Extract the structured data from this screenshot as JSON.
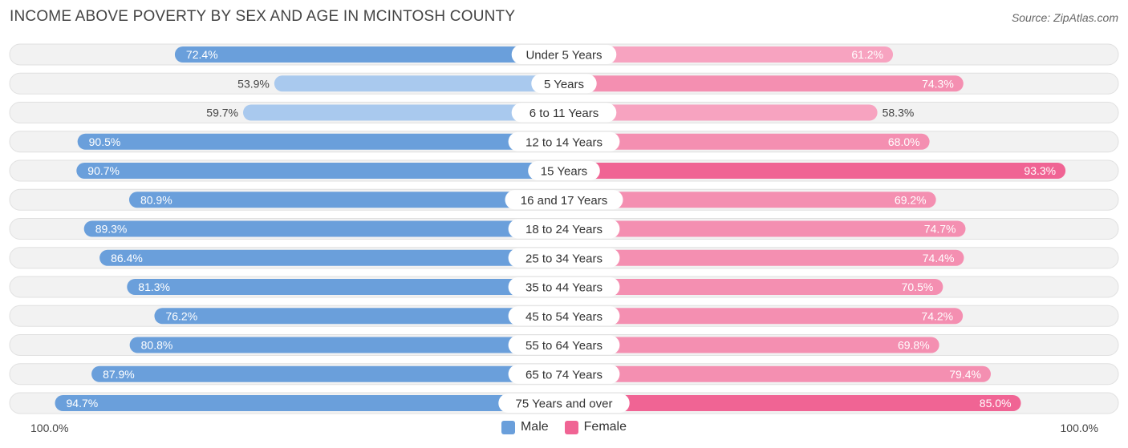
{
  "title": "INCOME ABOVE POVERTY BY SEX AND AGE IN MCINTOSH COUNTY",
  "source": "Source: ZipAtlas.com",
  "axis": {
    "left": "100.0%",
    "right": "100.0%"
  },
  "legend": [
    {
      "name": "Male",
      "color": "#6a9fdb"
    },
    {
      "name": "Female",
      "color": "#f06494"
    }
  ],
  "chart_data": {
    "type": "bar",
    "orientation": "horizontal-diverging",
    "title": "INCOME ABOVE POVERTY BY SEX AND AGE IN MCINTOSH COUNTY",
    "categories": [
      "Under 5 Years",
      "5 Years",
      "6 to 11 Years",
      "12 to 14 Years",
      "15 Years",
      "16 and 17 Years",
      "18 to 24 Years",
      "25 to 34 Years",
      "35 to 44 Years",
      "45 to 54 Years",
      "55 to 64 Years",
      "65 to 74 Years",
      "75 Years and over"
    ],
    "series": [
      {
        "name": "Male",
        "values": [
          72.4,
          53.9,
          59.7,
          90.5,
          90.7,
          80.9,
          89.3,
          86.4,
          81.3,
          76.2,
          80.8,
          87.9,
          94.7
        ],
        "labels": [
          "72.4%",
          "53.9%",
          "59.7%",
          "90.5%",
          "90.7%",
          "80.9%",
          "89.3%",
          "86.4%",
          "81.3%",
          "76.2%",
          "80.8%",
          "87.9%",
          "94.7%"
        ]
      },
      {
        "name": "Female",
        "values": [
          61.2,
          74.3,
          58.3,
          68.0,
          93.3,
          69.2,
          74.7,
          74.4,
          70.5,
          74.2,
          69.8,
          79.4,
          85.0
        ],
        "labels": [
          "61.2%",
          "74.3%",
          "58.3%",
          "68.0%",
          "93.3%",
          "69.2%",
          "74.7%",
          "74.4%",
          "70.5%",
          "74.2%",
          "69.8%",
          "79.4%",
          "85.0%"
        ]
      }
    ],
    "xlim": [
      0,
      100
    ],
    "colors": {
      "male_dark": "#6a9fdb",
      "male_light": "#a9c9ee",
      "female_dark": "#f06494",
      "female_light": "#f7a3c0"
    }
  }
}
